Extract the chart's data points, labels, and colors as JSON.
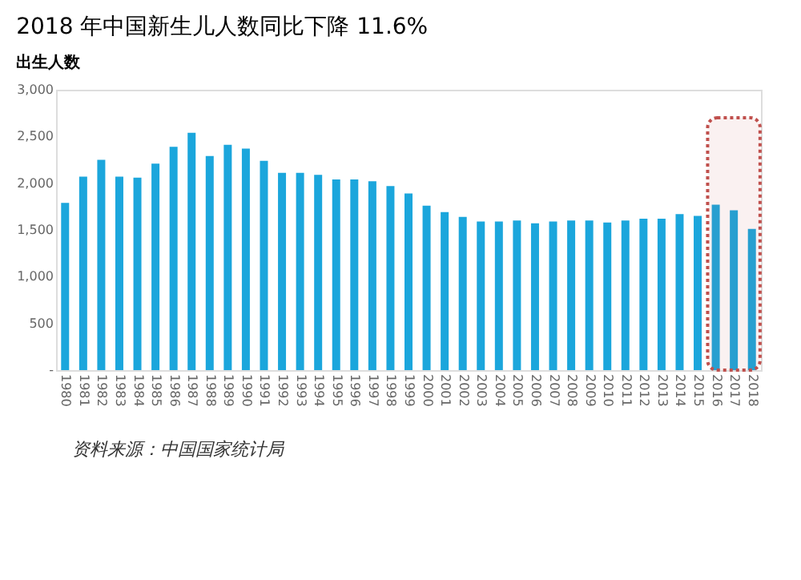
{
  "chart_data": {
    "type": "bar",
    "title": "2018 年中国新生儿人数同比下降 11.6%",
    "subtitle": "出生人数",
    "categories": [
      "1980",
      "1981",
      "1982",
      "1983",
      "1984",
      "1985",
      "1986",
      "1987",
      "1988",
      "1989",
      "1990",
      "1991",
      "1992",
      "1993",
      "1994",
      "1995",
      "1996",
      "1997",
      "1998",
      "1999",
      "2000",
      "2001",
      "2002",
      "2003",
      "2004",
      "2005",
      "2006",
      "2007",
      "2008",
      "2009",
      "2010",
      "2011",
      "2012",
      "2013",
      "2014",
      "2015",
      "2016",
      "2017",
      "2018"
    ],
    "values": [
      1790,
      2070,
      2250,
      2070,
      2060,
      2210,
      2390,
      2540,
      2290,
      2410,
      2370,
      2240,
      2110,
      2110,
      2090,
      2040,
      2040,
      2020,
      1970,
      1890,
      1760,
      1690,
      1640,
      1590,
      1590,
      1600,
      1570,
      1590,
      1600,
      1600,
      1580,
      1600,
      1620,
      1620,
      1670,
      1650,
      1770,
      1710,
      1510
    ],
    "color": "#1ba6dc",
    "ylim": [
      0,
      3000
    ],
    "yticks": [
      {
        "value": 0,
        "label": "-"
      },
      500,
      {
        "value": 1000,
        "label": "1,000"
      },
      {
        "value": 1500,
        "label": "1,500"
      },
      {
        "value": 2000,
        "label": "2,000"
      },
      {
        "value": 2500,
        "label": "2,500"
      },
      {
        "value": 3000,
        "label": "3,000"
      }
    ],
    "grid": false,
    "bands": [
      {
        "axis": "x",
        "from": "2016",
        "to": "2018",
        "color": "#c0504d"
      }
    ],
    "annotations": [
      "资料来源：中国国家统计局"
    ]
  }
}
